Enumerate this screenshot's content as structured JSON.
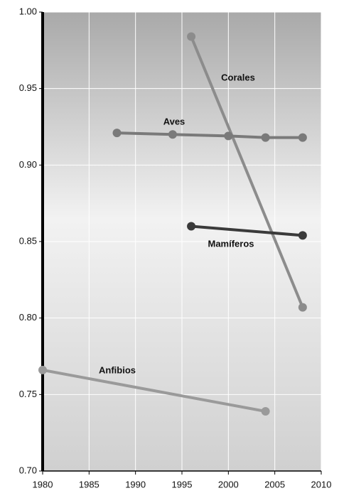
{
  "chart_data": {
    "type": "line",
    "xlim": [
      1980,
      2010
    ],
    "xticks": [
      1980,
      1985,
      1990,
      1995,
      2000,
      2005,
      2010
    ],
    "ylim": [
      0.7,
      1.0
    ],
    "yticks": [
      {
        "value": 0.7,
        "label": "0.70"
      },
      {
        "value": 0.75,
        "label": "0.75"
      },
      {
        "value": 0.8,
        "label": "0.80"
      },
      {
        "value": 0.85,
        "label": "0.85"
      },
      {
        "value": 0.9,
        "label": "0.90"
      },
      {
        "value": 0.95,
        "label": "0.95"
      },
      {
        "value": 1.0,
        "label": "1.00"
      }
    ],
    "grid": true,
    "series": [
      {
        "name": "Corales",
        "color": "#8c8c8c",
        "x": [
          1996,
          2008
        ],
        "values": [
          0.984,
          0.807
        ]
      },
      {
        "name": "Aves",
        "color": "#7a7a7a",
        "x": [
          1988,
          1994,
          2000,
          2004,
          2008
        ],
        "values": [
          0.921,
          0.92,
          0.919,
          0.918,
          0.918
        ]
      },
      {
        "name": "Mamíferos",
        "color": "#3a3a3a",
        "x": [
          1996,
          2008
        ],
        "values": [
          0.86,
          0.854
        ]
      },
      {
        "name": "Anfibios",
        "color": "#9a9a9a",
        "x": [
          1980,
          2004
        ],
        "values": [
          0.766,
          0.739
        ]
      }
    ]
  }
}
